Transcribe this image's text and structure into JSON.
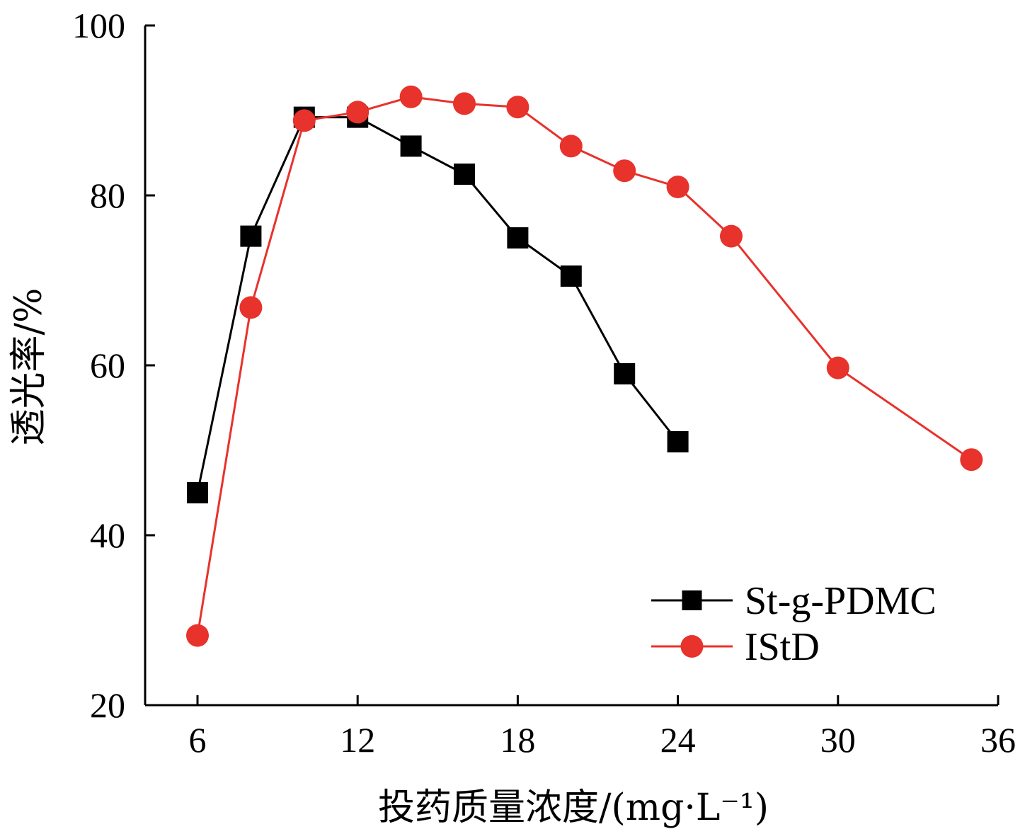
{
  "chart_data": {
    "type": "line",
    "title": "",
    "xlabel": "投药质量浓度/(mg·L⁻¹)",
    "ylabel": "透光率/%",
    "xlim": [
      4,
      36
    ],
    "ylim": [
      20,
      100
    ],
    "xticks": [
      6,
      12,
      18,
      24,
      30,
      36
    ],
    "yticks": [
      20,
      40,
      60,
      80,
      100
    ],
    "grid": false,
    "legend_position": "bottom-right",
    "series": [
      {
        "name": "St-g-PDMC",
        "marker": "square",
        "color": "#000000",
        "x": [
          6,
          8,
          10,
          12,
          14,
          16,
          18,
          20,
          22,
          24
        ],
        "y": [
          45,
          75.2,
          89.2,
          89.2,
          85.8,
          82.5,
          75,
          70.5,
          59,
          51
        ]
      },
      {
        "name": "IStD",
        "marker": "circle",
        "color": "#e8322c",
        "x": [
          6,
          8,
          10,
          12,
          14,
          16,
          18,
          20,
          22,
          24,
          26,
          30,
          35
        ],
        "y": [
          28.2,
          66.8,
          88.8,
          89.8,
          91.6,
          90.8,
          90.4,
          85.8,
          82.9,
          81,
          75.2,
          59.7,
          48.9
        ]
      }
    ]
  }
}
